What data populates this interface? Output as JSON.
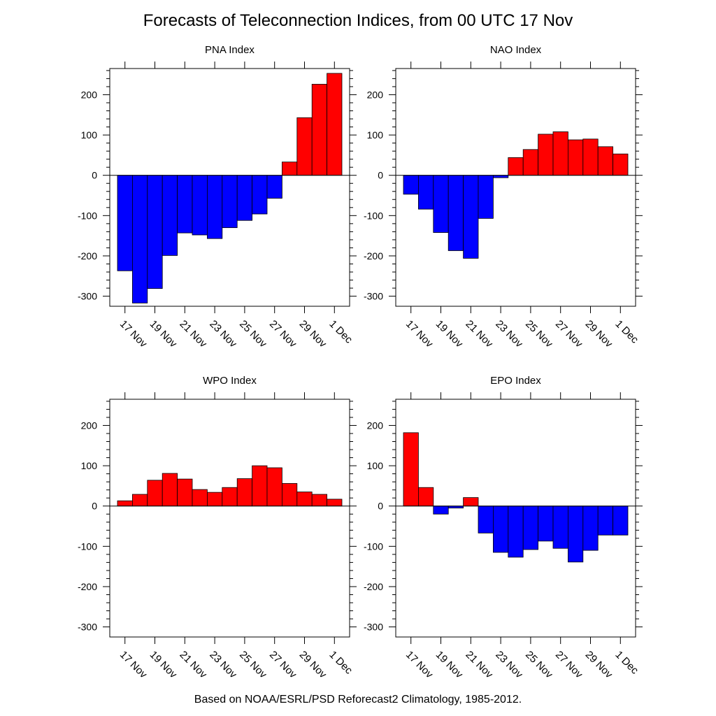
{
  "title": "Forecasts of Teleconnection Indices, from 00 UTC 17 Nov",
  "footer": "Based on NOAA/ESRL/PSD Reforecast2 Climatology, 1985-2012.",
  "colors": {
    "positive": "#ff0000",
    "negative": "#0000ff",
    "axis": "#000000"
  },
  "chart_data": [
    {
      "type": "bar",
      "title": "PNA Index",
      "categories": [
        "17 Nov",
        "18 Nov",
        "19 Nov",
        "20 Nov",
        "21 Nov",
        "22 Nov",
        "23 Nov",
        "24 Nov",
        "25 Nov",
        "26 Nov",
        "27 Nov",
        "28 Nov",
        "29 Nov",
        "30 Nov",
        "1 Dec"
      ],
      "values": [
        -237,
        -317,
        -281,
        -199,
        -143,
        -148,
        -157,
        -130,
        -112,
        -96,
        -57,
        33,
        143,
        226,
        253
      ],
      "tick_labels": [
        "17 Nov",
        "19 Nov",
        "21 Nov",
        "23 Nov",
        "25 Nov",
        "27 Nov",
        "29 Nov",
        "1 Dec"
      ],
      "yticks": [
        200,
        100,
        0,
        -100,
        -200,
        -300
      ],
      "ylim": [
        -325,
        265
      ]
    },
    {
      "type": "bar",
      "title": "NAO Index",
      "categories": [
        "17 Nov",
        "18 Nov",
        "19 Nov",
        "20 Nov",
        "21 Nov",
        "22 Nov",
        "23 Nov",
        "24 Nov",
        "25 Nov",
        "26 Nov",
        "27 Nov",
        "28 Nov",
        "29 Nov",
        "30 Nov",
        "1 Dec"
      ],
      "values": [
        -47,
        -84,
        -142,
        -187,
        -206,
        -107,
        -6,
        44,
        64,
        102,
        108,
        88,
        90,
        71,
        53
      ],
      "tick_labels": [
        "17 Nov",
        "19 Nov",
        "21 Nov",
        "23 Nov",
        "25 Nov",
        "27 Nov",
        "29 Nov",
        "1 Dec"
      ],
      "yticks": [
        200,
        100,
        0,
        -100,
        -200,
        -300
      ],
      "ylim": [
        -325,
        265
      ]
    },
    {
      "type": "bar",
      "title": "WPO Index",
      "categories": [
        "17 Nov",
        "18 Nov",
        "19 Nov",
        "20 Nov",
        "21 Nov",
        "22 Nov",
        "23 Nov",
        "24 Nov",
        "25 Nov",
        "26 Nov",
        "27 Nov",
        "28 Nov",
        "29 Nov",
        "30 Nov",
        "1 Dec"
      ],
      "values": [
        13,
        29,
        64,
        81,
        67,
        41,
        34,
        46,
        68,
        100,
        95,
        56,
        35,
        29,
        17
      ],
      "tick_labels": [
        "17 Nov",
        "19 Nov",
        "21 Nov",
        "23 Nov",
        "25 Nov",
        "27 Nov",
        "29 Nov",
        "1 Dec"
      ],
      "yticks": [
        200,
        100,
        0,
        -100,
        -200,
        -300
      ],
      "ylim": [
        -325,
        265
      ]
    },
    {
      "type": "bar",
      "title": "EPO Index",
      "categories": [
        "17 Nov",
        "18 Nov",
        "19 Nov",
        "20 Nov",
        "21 Nov",
        "22 Nov",
        "23 Nov",
        "24 Nov",
        "25 Nov",
        "26 Nov",
        "27 Nov",
        "28 Nov",
        "29 Nov",
        "30 Nov",
        "1 Dec"
      ],
      "values": [
        182,
        46,
        -20,
        -5,
        21,
        -67,
        -115,
        -127,
        -108,
        -87,
        -105,
        -139,
        -110,
        -72,
        -72
      ],
      "tick_labels": [
        "17 Nov",
        "19 Nov",
        "21 Nov",
        "23 Nov",
        "25 Nov",
        "27 Nov",
        "29 Nov",
        "1 Dec"
      ],
      "yticks": [
        200,
        100,
        0,
        -100,
        -200,
        -300
      ],
      "ylim": [
        -325,
        265
      ]
    }
  ]
}
